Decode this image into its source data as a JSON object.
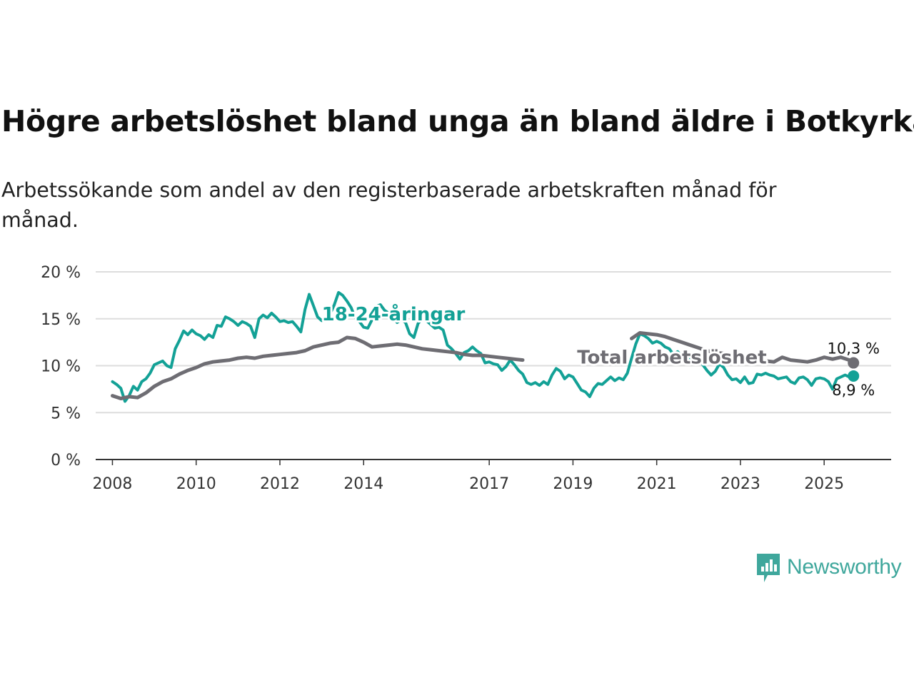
{
  "title": "Högre arbetslöshet bland unga än bland äldre i Botkyrka",
  "subtitle": "Arbetssökande som andel av den registerbaserade arbetskraften månad för månad.",
  "brand": "Newsworthy",
  "colors": {
    "youth": "#13a196",
    "total": "#6e6d73",
    "grid": "#dddddd",
    "axis": "#333333"
  },
  "chart_data": {
    "type": "line",
    "title": "Högre arbetslöshet bland unga än bland äldre i Botkyrka",
    "xlabel": "",
    "ylabel": "",
    "ylim": [
      0,
      20
    ],
    "xlim": [
      2007.6,
      2026.6
    ],
    "grid": true,
    "y_ticks": [
      0,
      5,
      10,
      15,
      20
    ],
    "y_tick_labels": [
      "0 %",
      "5 %",
      "10 %",
      "15 %",
      "20 %"
    ],
    "x_ticks": [
      2008,
      2010,
      2012,
      2014,
      2017,
      2019,
      2021,
      2023,
      2025
    ],
    "x_tick_labels": [
      "2008",
      "2010",
      "2012",
      "2014",
      "2017",
      "2019",
      "2021",
      "2023",
      "2025"
    ],
    "series": [
      {
        "name": "18-24-åringar",
        "label": "18-24-åringar",
        "end_label": "8,9 %",
        "points": [
          [
            2008.0,
            8.3
          ],
          [
            2008.1,
            8.0
          ],
          [
            2008.2,
            7.6
          ],
          [
            2008.3,
            6.2
          ],
          [
            2008.4,
            6.8
          ],
          [
            2008.5,
            7.8
          ],
          [
            2008.6,
            7.4
          ],
          [
            2008.7,
            8.3
          ],
          [
            2008.8,
            8.6
          ],
          [
            2008.9,
            9.2
          ],
          [
            2009.0,
            10.1
          ],
          [
            2009.1,
            10.3
          ],
          [
            2009.2,
            10.5
          ],
          [
            2009.3,
            10.0
          ],
          [
            2009.4,
            9.8
          ],
          [
            2009.5,
            11.8
          ],
          [
            2009.6,
            12.7
          ],
          [
            2009.7,
            13.7
          ],
          [
            2009.8,
            13.3
          ],
          [
            2009.9,
            13.8
          ],
          [
            2010.0,
            13.4
          ],
          [
            2010.1,
            13.2
          ],
          [
            2010.2,
            12.8
          ],
          [
            2010.3,
            13.3
          ],
          [
            2010.4,
            13.0
          ],
          [
            2010.5,
            14.3
          ],
          [
            2010.6,
            14.2
          ],
          [
            2010.7,
            15.2
          ],
          [
            2010.8,
            15.0
          ],
          [
            2010.9,
            14.7
          ],
          [
            2011.0,
            14.3
          ],
          [
            2011.1,
            14.7
          ],
          [
            2011.2,
            14.5
          ],
          [
            2011.3,
            14.2
          ],
          [
            2011.4,
            13.0
          ],
          [
            2011.5,
            15.0
          ],
          [
            2011.6,
            15.4
          ],
          [
            2011.7,
            15.1
          ],
          [
            2011.8,
            15.6
          ],
          [
            2011.9,
            15.2
          ],
          [
            2012.0,
            14.7
          ],
          [
            2012.1,
            14.8
          ],
          [
            2012.2,
            14.6
          ],
          [
            2012.3,
            14.7
          ],
          [
            2012.4,
            14.2
          ],
          [
            2012.5,
            13.6
          ],
          [
            2012.6,
            16.0
          ],
          [
            2012.7,
            17.6
          ],
          [
            2012.8,
            16.4
          ],
          [
            2012.9,
            15.2
          ],
          [
            2013.0,
            14.8
          ],
          [
            2013.1,
            15.1
          ],
          [
            2013.2,
            15.5
          ],
          [
            2013.3,
            16.5
          ],
          [
            2013.4,
            17.8
          ],
          [
            2013.5,
            17.5
          ],
          [
            2013.6,
            16.9
          ],
          [
            2013.7,
            16.2
          ],
          [
            2013.8,
            15.1
          ],
          [
            2013.9,
            14.7
          ],
          [
            2014.0,
            14.1
          ],
          [
            2014.1,
            14.0
          ],
          [
            2014.2,
            14.9
          ],
          [
            2014.3,
            16.3
          ],
          [
            2014.4,
            16.5
          ],
          [
            2014.5,
            15.9
          ],
          [
            2014.6,
            15.6
          ],
          [
            2014.7,
            15.2
          ],
          [
            2014.8,
            14.6
          ],
          [
            2014.9,
            14.9
          ],
          [
            2015.0,
            14.6
          ],
          [
            2015.1,
            13.4
          ],
          [
            2015.2,
            13.0
          ],
          [
            2015.3,
            14.5
          ],
          [
            2015.4,
            15.0
          ],
          [
            2015.5,
            14.8
          ],
          [
            2015.6,
            14.4
          ],
          [
            2015.7,
            14.0
          ],
          [
            2015.8,
            14.1
          ],
          [
            2015.9,
            13.8
          ],
          [
            2016.0,
            12.2
          ],
          [
            2016.1,
            11.8
          ],
          [
            2016.2,
            11.3
          ],
          [
            2016.3,
            10.7
          ],
          [
            2016.4,
            11.4
          ],
          [
            2016.5,
            11.6
          ],
          [
            2016.6,
            12.0
          ],
          [
            2016.7,
            11.6
          ],
          [
            2016.8,
            11.3
          ],
          [
            2016.9,
            10.3
          ],
          [
            2017.0,
            10.4
          ],
          [
            2017.1,
            10.2
          ],
          [
            2017.2,
            10.1
          ],
          [
            2017.3,
            9.5
          ],
          [
            2017.4,
            9.9
          ],
          [
            2017.5,
            10.6
          ],
          [
            2017.6,
            10.1
          ],
          [
            2017.7,
            9.5
          ],
          [
            2017.8,
            9.1
          ],
          [
            2017.9,
            8.2
          ],
          [
            2018.0,
            8.0
          ],
          [
            2018.1,
            8.2
          ],
          [
            2018.2,
            7.9
          ],
          [
            2018.3,
            8.3
          ],
          [
            2018.4,
            8.0
          ],
          [
            2018.5,
            9.0
          ],
          [
            2018.6,
            9.7
          ],
          [
            2018.7,
            9.4
          ],
          [
            2018.8,
            8.6
          ],
          [
            2018.9,
            9.0
          ],
          [
            2019.0,
            8.8
          ],
          [
            2019.1,
            8.1
          ],
          [
            2019.2,
            7.4
          ],
          [
            2019.3,
            7.2
          ],
          [
            2019.4,
            6.7
          ],
          [
            2019.5,
            7.6
          ],
          [
            2019.6,
            8.1
          ],
          [
            2019.7,
            8.0
          ],
          [
            2019.8,
            8.4
          ],
          [
            2019.9,
            8.8
          ],
          [
            2020.0,
            8.4
          ],
          [
            2020.1,
            8.7
          ],
          [
            2020.2,
            8.5
          ],
          [
            2020.3,
            9.2
          ],
          [
            2020.4,
            10.8
          ],
          [
            2020.5,
            12.3
          ],
          [
            2020.6,
            13.4
          ],
          [
            2020.7,
            13.2
          ],
          [
            2020.8,
            12.9
          ],
          [
            2020.9,
            12.4
          ],
          [
            2021.0,
            12.6
          ],
          [
            2021.1,
            12.4
          ],
          [
            2021.2,
            12.0
          ],
          [
            2021.3,
            11.8
          ],
          [
            2021.4,
            11.2
          ],
          [
            2021.5,
            11.5
          ],
          [
            2021.6,
            11.0
          ],
          [
            2021.7,
            11.3
          ],
          [
            2021.8,
            10.6
          ],
          [
            2021.9,
            10.8
          ],
          [
            2022.0,
            10.9
          ],
          [
            2022.1,
            10.1
          ],
          [
            2022.2,
            9.5
          ],
          [
            2022.3,
            9.0
          ],
          [
            2022.4,
            9.4
          ],
          [
            2022.5,
            10.2
          ],
          [
            2022.6,
            9.8
          ],
          [
            2022.7,
            9.0
          ],
          [
            2022.8,
            8.5
          ],
          [
            2022.9,
            8.6
          ],
          [
            2023.0,
            8.2
          ],
          [
            2023.1,
            8.8
          ],
          [
            2023.2,
            8.1
          ],
          [
            2023.3,
            8.2
          ],
          [
            2023.4,
            9.1
          ],
          [
            2023.5,
            9.0
          ],
          [
            2023.6,
            9.2
          ],
          [
            2023.7,
            9.0
          ],
          [
            2023.8,
            8.9
          ],
          [
            2023.9,
            8.6
          ],
          [
            2024.0,
            8.7
          ],
          [
            2024.1,
            8.8
          ],
          [
            2024.2,
            8.3
          ],
          [
            2024.3,
            8.1
          ],
          [
            2024.4,
            8.7
          ],
          [
            2024.5,
            8.8
          ],
          [
            2024.6,
            8.5
          ],
          [
            2024.7,
            7.9
          ],
          [
            2024.8,
            8.6
          ],
          [
            2024.9,
            8.7
          ],
          [
            2025.0,
            8.6
          ],
          [
            2025.1,
            8.3
          ],
          [
            2025.2,
            7.5
          ],
          [
            2025.3,
            8.6
          ],
          [
            2025.4,
            8.8
          ],
          [
            2025.5,
            9.0
          ],
          [
            2025.6,
            8.8
          ],
          [
            2025.7,
            8.9
          ]
        ]
      },
      {
        "name": "Total arbetslöshet",
        "label": "Total arbetslöshet",
        "end_label": "10,3 %",
        "points": [
          [
            2008.0,
            6.8
          ],
          [
            2008.2,
            6.5
          ],
          [
            2008.4,
            6.7
          ],
          [
            2008.6,
            6.6
          ],
          [
            2008.8,
            7.1
          ],
          [
            2009.0,
            7.8
          ],
          [
            2009.2,
            8.3
          ],
          [
            2009.4,
            8.6
          ],
          [
            2009.6,
            9.1
          ],
          [
            2009.8,
            9.5
          ],
          [
            2010.0,
            9.8
          ],
          [
            2010.2,
            10.2
          ],
          [
            2010.4,
            10.4
          ],
          [
            2010.6,
            10.5
          ],
          [
            2010.8,
            10.6
          ],
          [
            2011.0,
            10.8
          ],
          [
            2011.2,
            10.9
          ],
          [
            2011.4,
            10.8
          ],
          [
            2011.6,
            11.0
          ],
          [
            2011.8,
            11.1
          ],
          [
            2012.0,
            11.2
          ],
          [
            2012.2,
            11.3
          ],
          [
            2012.4,
            11.4
          ],
          [
            2012.6,
            11.6
          ],
          [
            2012.8,
            12.0
          ],
          [
            2013.0,
            12.2
          ],
          [
            2013.2,
            12.4
          ],
          [
            2013.4,
            12.5
          ],
          [
            2013.6,
            13.0
          ],
          [
            2013.8,
            12.9
          ],
          [
            2014.0,
            12.5
          ],
          [
            2014.2,
            12.0
          ],
          [
            2014.4,
            12.1
          ],
          [
            2014.6,
            12.2
          ],
          [
            2014.8,
            12.3
          ],
          [
            2015.0,
            12.2
          ],
          [
            2015.2,
            12.0
          ],
          [
            2015.4,
            11.8
          ],
          [
            2015.6,
            11.7
          ],
          [
            2015.8,
            11.6
          ],
          [
            2016.0,
            11.5
          ],
          [
            2016.2,
            11.4
          ],
          [
            2016.4,
            11.2
          ],
          [
            2016.6,
            11.1
          ],
          [
            2016.8,
            11.1
          ],
          [
            2017.0,
            11.0
          ],
          [
            2017.2,
            10.9
          ],
          [
            2017.4,
            10.8
          ],
          [
            2017.6,
            10.7
          ],
          [
            2017.8,
            10.6
          ],
          [
            2020.4,
            12.9
          ],
          [
            2020.6,
            13.5
          ],
          [
            2020.8,
            13.4
          ],
          [
            2021.0,
            13.3
          ],
          [
            2021.2,
            13.1
          ],
          [
            2021.4,
            12.8
          ],
          [
            2021.6,
            12.5
          ],
          [
            2021.8,
            12.2
          ],
          [
            2022.0,
            11.9
          ],
          [
            2022.2,
            11.6
          ],
          [
            2022.4,
            11.4
          ],
          [
            2022.6,
            11.3
          ],
          [
            2022.8,
            11.1
          ],
          [
            2023.0,
            10.7
          ],
          [
            2023.2,
            10.4
          ],
          [
            2023.4,
            10.4
          ],
          [
            2023.6,
            10.5
          ],
          [
            2023.8,
            10.4
          ],
          [
            2024.0,
            10.9
          ],
          [
            2024.2,
            10.6
          ],
          [
            2024.4,
            10.5
          ],
          [
            2024.6,
            10.4
          ],
          [
            2024.8,
            10.6
          ],
          [
            2025.0,
            10.9
          ],
          [
            2025.2,
            10.7
          ],
          [
            2025.4,
            10.9
          ],
          [
            2025.6,
            10.6
          ],
          [
            2025.7,
            10.3
          ]
        ]
      }
    ],
    "annotations": [
      {
        "text": "18-24-åringar",
        "series": "18-24-åringar",
        "x": 2013.0,
        "y": 15.5
      },
      {
        "text": "Total arbetslöshet",
        "series": "Total arbetslöshet",
        "x": 2019.1,
        "y": 10.9
      }
    ]
  }
}
